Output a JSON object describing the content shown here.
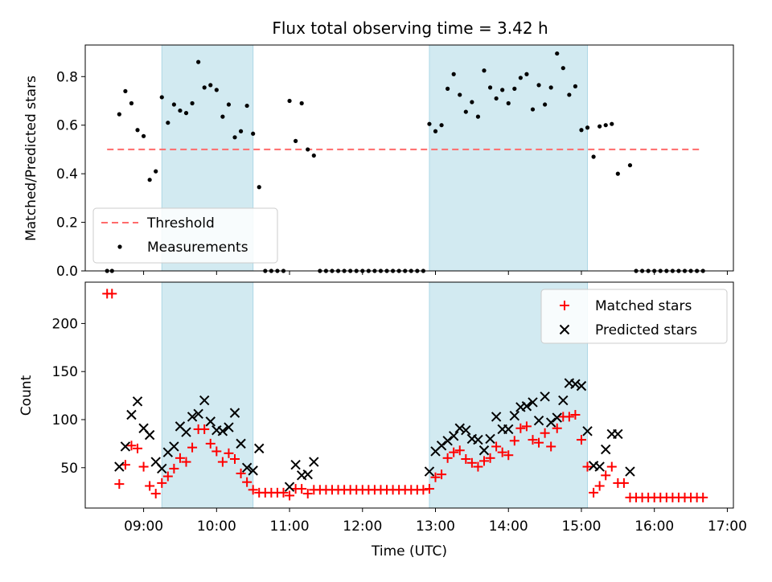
{
  "title": "Flux total observing time = 3.42 h",
  "colors": {
    "shade": "#add8e6",
    "threshold": "#ff6b6b",
    "measurement": "#000000",
    "matched": "#ff0000",
    "predicted": "#000000"
  },
  "chart_data": [
    {
      "type": "scatter",
      "ylabel": "Matched/Predicted stars",
      "xlim": [
        "08:12",
        "17:05"
      ],
      "ylim": [
        0,
        0.93
      ],
      "yticks": [
        "0.0",
        "0.2",
        "0.4",
        "0.6",
        "0.8"
      ],
      "grid": false,
      "legend_position": "lower-left",
      "shaded_intervals": [
        [
          "09:15",
          "10:30"
        ],
        [
          "12:55",
          "15:05"
        ]
      ],
      "threshold": {
        "name": "Threshold",
        "y": 0.5,
        "x_range": [
          "08:30",
          "16:40"
        ]
      },
      "series": [
        {
          "name": "Measurements",
          "points": [
            [
              "08:30",
              0
            ],
            [
              "08:34",
              0
            ],
            [
              "08:40",
              0.645
            ],
            [
              "08:45",
              0.74
            ],
            [
              "08:50",
              0.69
            ],
            [
              "08:55",
              0.58
            ],
            [
              "09:00",
              0.555
            ],
            [
              "09:05",
              0.375
            ],
            [
              "09:10",
              0.41
            ],
            [
              "09:15",
              0.715
            ],
            [
              "09:20",
              0.61
            ],
            [
              "09:25",
              0.685
            ],
            [
              "09:30",
              0.66
            ],
            [
              "09:35",
              0.65
            ],
            [
              "09:40",
              0.69
            ],
            [
              "09:45",
              0.86
            ],
            [
              "09:50",
              0.755
            ],
            [
              "09:55",
              0.765
            ],
            [
              "10:00",
              0.745
            ],
            [
              "10:05",
              0.635
            ],
            [
              "10:10",
              0.685
            ],
            [
              "10:15",
              0.55
            ],
            [
              "10:20",
              0.575
            ],
            [
              "10:25",
              0.68
            ],
            [
              "10:30",
              0.565
            ],
            [
              "10:35",
              0.345
            ],
            [
              "10:40",
              0
            ],
            [
              "10:45",
              0
            ],
            [
              "10:50",
              0
            ],
            [
              "10:55",
              0
            ],
            [
              "11:00",
              0.7
            ],
            [
              "11:05",
              0.535
            ],
            [
              "11:10",
              0.69
            ],
            [
              "11:15",
              0.5
            ],
            [
              "11:20",
              0.475
            ],
            [
              "11:25",
              0
            ],
            [
              "11:30",
              0
            ],
            [
              "11:35",
              0
            ],
            [
              "11:40",
              0
            ],
            [
              "11:45",
              0
            ],
            [
              "11:50",
              0
            ],
            [
              "11:55",
              0
            ],
            [
              "12:00",
              0
            ],
            [
              "12:05",
              0
            ],
            [
              "12:10",
              0
            ],
            [
              "12:15",
              0
            ],
            [
              "12:20",
              0
            ],
            [
              "12:25",
              0
            ],
            [
              "12:30",
              0
            ],
            [
              "12:35",
              0
            ],
            [
              "12:40",
              0
            ],
            [
              "12:45",
              0
            ],
            [
              "12:50",
              0
            ],
            [
              "12:55",
              0.605
            ],
            [
              "13:00",
              0.575
            ],
            [
              "13:05",
              0.6
            ],
            [
              "13:10",
              0.75
            ],
            [
              "13:15",
              0.81
            ],
            [
              "13:20",
              0.725
            ],
            [
              "13:25",
              0.655
            ],
            [
              "13:30",
              0.695
            ],
            [
              "13:35",
              0.635
            ],
            [
              "13:40",
              0.825
            ],
            [
              "13:45",
              0.755
            ],
            [
              "13:50",
              0.71
            ],
            [
              "13:55",
              0.745
            ],
            [
              "14:00",
              0.69
            ],
            [
              "14:05",
              0.75
            ],
            [
              "14:10",
              0.795
            ],
            [
              "14:15",
              0.81
            ],
            [
              "14:20",
              0.665
            ],
            [
              "14:25",
              0.765
            ],
            [
              "14:30",
              0.685
            ],
            [
              "14:35",
              0.755
            ],
            [
              "14:40",
              0.895
            ],
            [
              "14:45",
              0.835
            ],
            [
              "14:50",
              0.725
            ],
            [
              "14:55",
              0.76
            ],
            [
              "15:00",
              0.58
            ],
            [
              "15:05",
              0.59
            ],
            [
              "15:10",
              0.47
            ],
            [
              "15:15",
              0.595
            ],
            [
              "15:20",
              0.6
            ],
            [
              "15:25",
              0.605
            ],
            [
              "15:30",
              0.4
            ],
            [
              "15:40",
              0.435
            ],
            [
              "15:45",
              0
            ],
            [
              "15:50",
              0
            ],
            [
              "15:55",
              0
            ],
            [
              "16:00",
              0
            ],
            [
              "16:05",
              0
            ],
            [
              "16:10",
              0
            ],
            [
              "16:15",
              0
            ],
            [
              "16:20",
              0
            ],
            [
              "16:25",
              0
            ],
            [
              "16:30",
              0
            ],
            [
              "16:35",
              0
            ],
            [
              "16:40",
              0
            ]
          ]
        }
      ]
    },
    {
      "type": "scatter",
      "xlabel": "Time (UTC)",
      "ylabel": "Count",
      "xlim": [
        "08:12",
        "17:05"
      ],
      "ylim": [
        8,
        243
      ],
      "xticks": [
        "09:00",
        "10:00",
        "11:00",
        "12:00",
        "13:00",
        "14:00",
        "15:00",
        "16:00",
        "17:00"
      ],
      "yticks": [
        "50",
        "100",
        "150",
        "200"
      ],
      "grid": false,
      "legend_position": "top-right",
      "shaded_intervals": [
        [
          "09:15",
          "10:30"
        ],
        [
          "12:55",
          "15:05"
        ]
      ],
      "series": [
        {
          "name": "Matched stars",
          "marker": "plus",
          "points": [
            [
              "08:30",
              231
            ],
            [
              "08:34",
              231
            ],
            [
              "08:40",
              33
            ],
            [
              "08:45",
              53
            ],
            [
              "08:50",
              73
            ],
            [
              "08:55",
              70
            ],
            [
              "09:00",
              51
            ],
            [
              "09:05",
              31
            ],
            [
              "09:10",
              23
            ],
            [
              "09:15",
              34
            ],
            [
              "09:20",
              41
            ],
            [
              "09:25",
              49
            ],
            [
              "09:30",
              60
            ],
            [
              "09:35",
              56
            ],
            [
              "09:40",
              71
            ],
            [
              "09:45",
              90
            ],
            [
              "09:50",
              90
            ],
            [
              "09:55",
              75
            ],
            [
              "10:00",
              67
            ],
            [
              "10:05",
              56
            ],
            [
              "10:10",
              65
            ],
            [
              "10:15",
              59
            ],
            [
              "10:20",
              44
            ],
            [
              "10:25",
              35
            ],
            [
              "10:30",
              27
            ],
            [
              "10:35",
              24
            ],
            [
              "10:40",
              24
            ],
            [
              "10:45",
              24
            ],
            [
              "10:50",
              24
            ],
            [
              "10:55",
              24
            ],
            [
              "11:00",
              21
            ],
            [
              "11:05",
              28
            ],
            [
              "11:10",
              28
            ],
            [
              "11:15",
              23
            ],
            [
              "11:20",
              27
            ],
            [
              "11:25",
              27
            ],
            [
              "11:30",
              27
            ],
            [
              "11:35",
              27
            ],
            [
              "11:40",
              27
            ],
            [
              "11:45",
              27
            ],
            [
              "11:50",
              27
            ],
            [
              "11:55",
              27
            ],
            [
              "12:00",
              27
            ],
            [
              "12:05",
              27
            ],
            [
              "12:10",
              27
            ],
            [
              "12:15",
              27
            ],
            [
              "12:20",
              27
            ],
            [
              "12:25",
              27
            ],
            [
              "12:30",
              27
            ],
            [
              "12:35",
              27
            ],
            [
              "12:40",
              27
            ],
            [
              "12:45",
              27
            ],
            [
              "12:50",
              27
            ],
            [
              "12:55",
              28
            ],
            [
              "13:00",
              40
            ],
            [
              "13:05",
              43
            ],
            [
              "13:10",
              60
            ],
            [
              "13:15",
              66
            ],
            [
              "13:20",
              68
            ],
            [
              "13:25",
              59
            ],
            [
              "13:30",
              55
            ],
            [
              "13:35",
              51
            ],
            [
              "13:40",
              57
            ],
            [
              "13:45",
              60
            ],
            [
              "13:50",
              72
            ],
            [
              "13:55",
              66
            ],
            [
              "14:00",
              63
            ],
            [
              "14:05",
              78
            ],
            [
              "14:10",
              91
            ],
            [
              "14:15",
              93
            ],
            [
              "14:20",
              79
            ],
            [
              "14:25",
              76
            ],
            [
              "14:30",
              86
            ],
            [
              "14:35",
              72
            ],
            [
              "14:40",
              91
            ],
            [
              "14:45",
              103
            ],
            [
              "14:50",
              103
            ],
            [
              "14:55",
              105
            ],
            [
              "15:00",
              79
            ],
            [
              "15:05",
              51
            ],
            [
              "15:10",
              24
            ],
            [
              "15:15",
              31
            ],
            [
              "15:20",
              42
            ],
            [
              "15:25",
              51
            ],
            [
              "15:30",
              34
            ],
            [
              "15:35",
              34
            ],
            [
              "15:40",
              19
            ],
            [
              "15:45",
              19
            ],
            [
              "15:50",
              19
            ],
            [
              "15:55",
              19
            ],
            [
              "16:00",
              19
            ],
            [
              "16:05",
              19
            ],
            [
              "16:10",
              19
            ],
            [
              "16:15",
              19
            ],
            [
              "16:20",
              19
            ],
            [
              "16:25",
              19
            ],
            [
              "16:30",
              19
            ],
            [
              "16:35",
              19
            ],
            [
              "16:40",
              19
            ]
          ]
        },
        {
          "name": "Predicted stars",
          "marker": "x",
          "points": [
            [
              "08:40",
              51
            ],
            [
              "08:45",
              72
            ],
            [
              "08:50",
              105
            ],
            [
              "08:55",
              119
            ],
            [
              "09:00",
              91
            ],
            [
              "09:05",
              84
            ],
            [
              "09:10",
              56
            ],
            [
              "09:15",
              49
            ],
            [
              "09:20",
              66
            ],
            [
              "09:25",
              72
            ],
            [
              "09:30",
              93
            ],
            [
              "09:35",
              87
            ],
            [
              "09:40",
              103
            ],
            [
              "09:45",
              106
            ],
            [
              "09:50",
              120
            ],
            [
              "09:55",
              98
            ],
            [
              "10:00",
              89
            ],
            [
              "10:05",
              88
            ],
            [
              "10:10",
              92
            ],
            [
              "10:15",
              107
            ],
            [
              "10:20",
              75
            ],
            [
              "10:25",
              50
            ],
            [
              "10:30",
              47
            ],
            [
              "10:35",
              70
            ],
            [
              "11:00",
              30
            ],
            [
              "11:05",
              53
            ],
            [
              "11:10",
              42
            ],
            [
              "11:15",
              43
            ],
            [
              "11:20",
              56
            ],
            [
              "12:55",
              46
            ],
            [
              "13:00",
              67
            ],
            [
              "13:05",
              73
            ],
            [
              "13:10",
              78
            ],
            [
              "13:15",
              83
            ],
            [
              "13:20",
              91
            ],
            [
              "13:25",
              89
            ],
            [
              "13:30",
              80
            ],
            [
              "13:35",
              79
            ],
            [
              "13:40",
              68
            ],
            [
              "13:45",
              80
            ],
            [
              "13:50",
              103
            ],
            [
              "13:55",
              90
            ],
            [
              "14:00",
              90
            ],
            [
              "14:05",
              104
            ],
            [
              "14:10",
              113
            ],
            [
              "14:15",
              114
            ],
            [
              "14:20",
              118
            ],
            [
              "14:25",
              99
            ],
            [
              "14:30",
              124
            ],
            [
              "14:35",
              97
            ],
            [
              "14:40",
              102
            ],
            [
              "14:45",
              120
            ],
            [
              "14:50",
              138
            ],
            [
              "14:55",
              137
            ],
            [
              "15:00",
              135
            ],
            [
              "15:05",
              88
            ],
            [
              "15:10",
              52
            ],
            [
              "15:15",
              51
            ],
            [
              "15:20",
              69
            ],
            [
              "15:25",
              85
            ],
            [
              "15:30",
              85
            ],
            [
              "15:40",
              46
            ]
          ]
        }
      ]
    }
  ]
}
